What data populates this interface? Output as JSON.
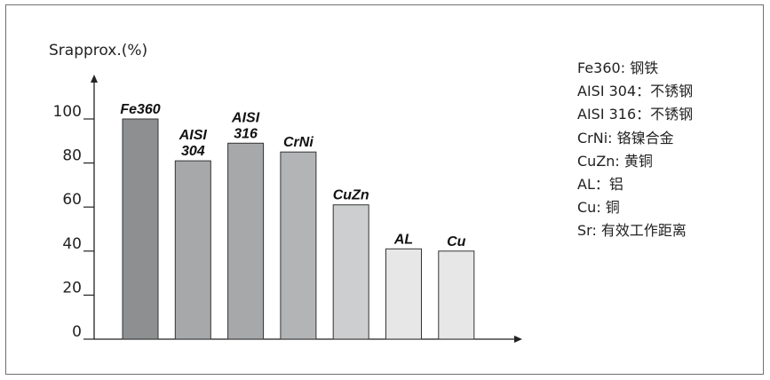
{
  "chart_data": {
    "type": "bar",
    "ylabel": "Srapprox.(%)",
    "ylim": [
      0,
      100
    ],
    "yticks": [
      0,
      20,
      40,
      60,
      80,
      100
    ],
    "categories": [
      {
        "label": [
          "Fe360"
        ],
        "value": 100,
        "color": "#8e8f91"
      },
      {
        "label": [
          "AISI",
          "304"
        ],
        "value": 81,
        "color": "#a7a8aa"
      },
      {
        "label": [
          "AISI",
          "316"
        ],
        "value": 89,
        "color": "#a7a8aa"
      },
      {
        "label": [
          "CrNi"
        ],
        "value": 85,
        "color": "#b3b4b6"
      },
      {
        "label": [
          "CuZn"
        ],
        "value": 61,
        "color": "#cdcecf"
      },
      {
        "label": [
          "AL"
        ],
        "value": 41,
        "color": "#e7e7e7"
      },
      {
        "label": [
          "Cu"
        ],
        "value": 40,
        "color": "#e7e7e7"
      }
    ],
    "legend_position": "right",
    "legend": [
      "Fe360: 钢铁",
      "AISI 304：不锈钢",
      "AISI 316：不锈钢",
      "CrNi: 铬镍合金",
      "CuZn: 黄铜",
      "AL：铝",
      "Cu: 铜",
      "Sr: 有效工作距离"
    ]
  }
}
